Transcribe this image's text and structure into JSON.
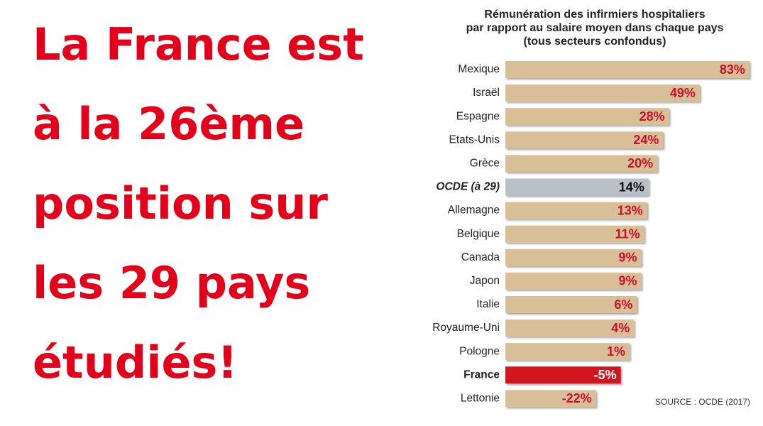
{
  "headline": [
    "La France est",
    "à la 26ème",
    "position sur",
    "les 29 pays",
    "étudiés!"
  ],
  "chart_data": {
    "type": "bar",
    "orientation": "horizontal",
    "title": [
      "Rémunération des infirmiers hospitaliers",
      "par rapport au salaire moyen dans chaque pays",
      "(tous secteurs confondus)"
    ],
    "categories": [
      "Mexique",
      "Israël",
      "Espagne",
      "Etats-Unis",
      "Grèce",
      "OCDE (à 29)",
      "Allemagne",
      "Belgique",
      "Canada",
      "Japon",
      "Italie",
      "Royaume-Uni",
      "Pologne",
      "France",
      "Lettonie"
    ],
    "values": [
      83,
      49,
      28,
      24,
      20,
      14,
      13,
      11,
      9,
      9,
      6,
      4,
      1,
      -5,
      -22
    ],
    "value_labels": [
      "83%",
      "49%",
      "28%",
      "24%",
      "20%",
      "14%",
      "13%",
      "11%",
      "9%",
      "9%",
      "6%",
      "4%",
      "1%",
      "-5%",
      "-22%"
    ],
    "colors": [
      "#d8bf98",
      "#d8bf98",
      "#d8bf98",
      "#d8bf98",
      "#d8bf98",
      "#b9c0c8",
      "#d8bf98",
      "#d8bf98",
      "#d8bf98",
      "#d8bf98",
      "#d8bf98",
      "#d8bf98",
      "#d8bf98",
      "#d0121b",
      "#d8bf98"
    ],
    "xlim": [
      -84,
      83
    ],
    "source": "SOURCE : OCDE (2017)"
  }
}
